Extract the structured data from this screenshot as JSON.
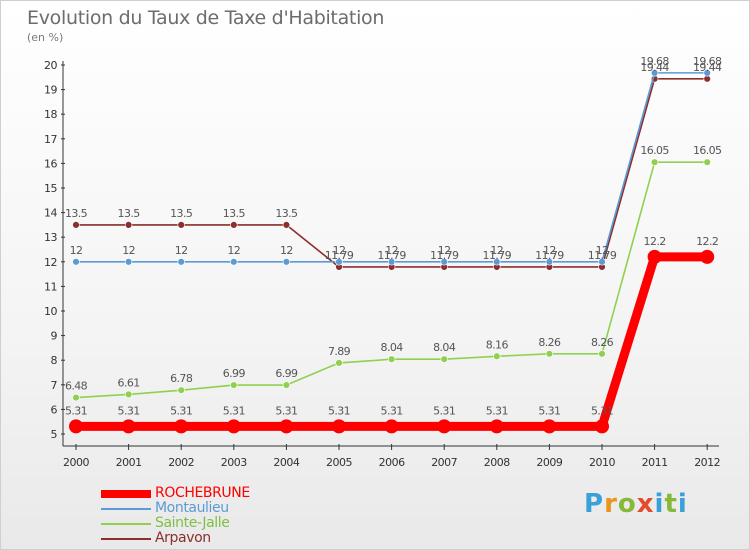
{
  "header": {
    "title": "Evolution du Taux de Taxe d'Habitation",
    "subtitle": "(en %)"
  },
  "brand": {
    "letters": [
      "P",
      "r",
      "o",
      "x",
      "i",
      "t",
      "i"
    ],
    "colors": [
      "#3aa0d8",
      "#e8951d",
      "#88b83a",
      "#e54b2b",
      "#3aa0d8",
      "#88b83a",
      "#3aa0d8"
    ]
  },
  "chart_data": {
    "type": "line",
    "x": [
      "2000",
      "2001",
      "2002",
      "2003",
      "2004",
      "2005",
      "2006",
      "2007",
      "2008",
      "2009",
      "2010",
      "2011",
      "2012"
    ],
    "ylim": [
      5,
      20
    ],
    "yticks": [
      "5",
      "6",
      "7",
      "8",
      "9",
      "10",
      "11",
      "12",
      "13",
      "14",
      "15",
      "16",
      "17",
      "18",
      "19",
      "20"
    ],
    "grid": false,
    "legend_position": "bottom-left",
    "series": [
      {
        "name": "ROCHEBRUNE",
        "color": "#ff0000",
        "values": [
          5.31,
          5.31,
          5.31,
          5.31,
          5.31,
          5.31,
          5.31,
          5.31,
          5.31,
          5.31,
          5.31,
          12.2,
          12.2
        ],
        "labels": [
          "5.31",
          "5.31",
          "5.31",
          "5.31",
          "5.31",
          "5.31",
          "5.31",
          "5.31",
          "5.31",
          "5.31",
          "5.31",
          "12.2",
          "12.2"
        ]
      },
      {
        "name": "Montaulieu",
        "color": "#5b9bd5",
        "values": [
          12,
          12,
          12,
          12,
          12,
          12,
          12,
          12,
          12,
          12,
          12,
          19.68,
          19.68
        ],
        "labels": [
          "12",
          "12",
          "12",
          "12",
          "12",
          "12",
          "12",
          "12",
          "12",
          "12",
          "12",
          "19.68",
          "19.68"
        ]
      },
      {
        "name": "Sainte-Jalle",
        "color": "#8fd14f",
        "values": [
          6.48,
          6.61,
          6.78,
          6.99,
          6.99,
          7.89,
          8.04,
          8.04,
          8.16,
          8.26,
          8.26,
          16.05,
          16.05
        ],
        "labels": [
          "6.48",
          "6.61",
          "6.78",
          "6.99",
          "6.99",
          "7.89",
          "8.04",
          "8.04",
          "8.16",
          "8.26",
          "8.26",
          "16.05",
          "16.05"
        ]
      },
      {
        "name": "Arpavon",
        "color": "#8b2e2e",
        "values": [
          13.5,
          13.5,
          13.5,
          13.5,
          13.5,
          11.79,
          11.79,
          11.79,
          11.79,
          11.79,
          11.79,
          19.44,
          19.44
        ],
        "labels": [
          "13.5",
          "13.5",
          "13.5",
          "13.5",
          "13.5",
          "11.79",
          "11.79",
          "11.79",
          "11.79",
          "11.79",
          "11.79",
          "19.44",
          "19.44"
        ]
      }
    ]
  }
}
